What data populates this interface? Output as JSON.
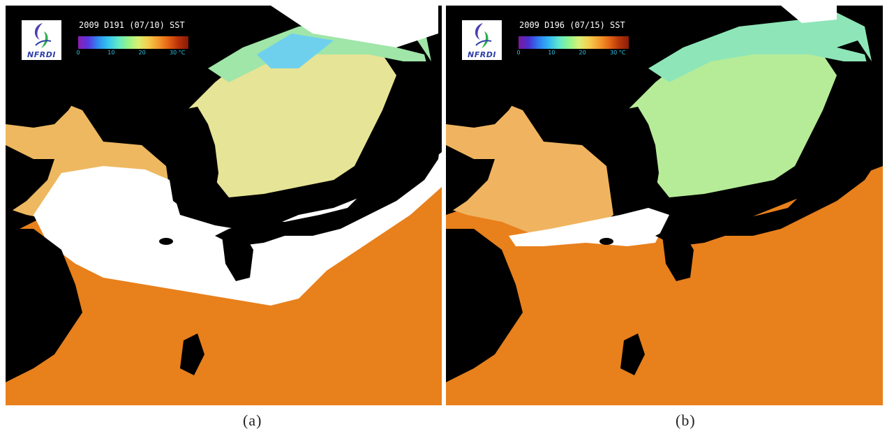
{
  "panels": [
    {
      "id": "a",
      "title": "2009 D191 (07/10) SST",
      "logo_text": "NFRDI",
      "ticks": [
        "0",
        "10",
        "20",
        "30 °C"
      ],
      "caption": "(a)"
    },
    {
      "id": "b",
      "title": "2009 D196 (07/15) SST",
      "logo_text": "NFRDI",
      "ticks": [
        "0",
        "10",
        "20",
        "30 °C"
      ],
      "caption": "(b)"
    }
  ],
  "colors": {
    "land": "#000000",
    "cloud": "#ffffff",
    "warm_sea": "#ea8a22",
    "mid_sea": "#efcf6a",
    "cool_sea": "#8fe8b0",
    "cold_sea": "#6cc8ee"
  }
}
